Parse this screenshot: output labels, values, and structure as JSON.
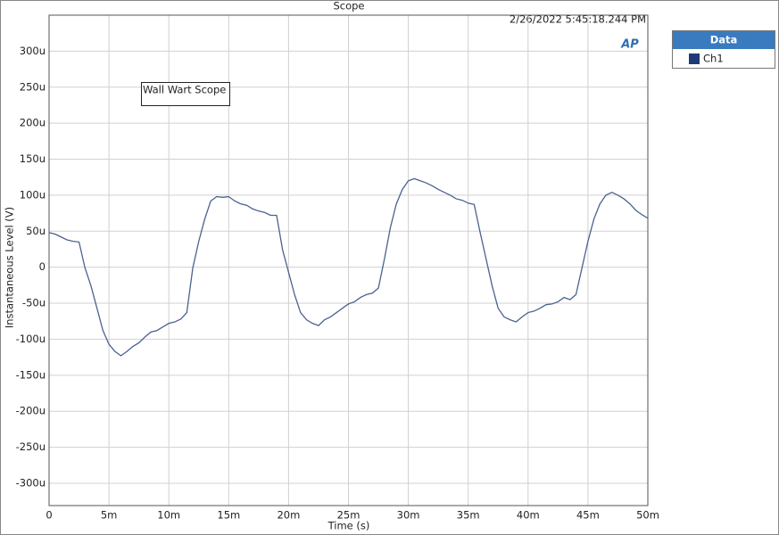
{
  "chart_data": {
    "type": "line",
    "title": "Scope",
    "timestamp": "2/26/2022 5:45:18.244 PM",
    "annotation": "Wall Wart Scope",
    "legend_title": "Data",
    "x_label": "Time (s)",
    "y_label": "Instantaneous Level (V)",
    "grid": true,
    "legend_position": "right",
    "xlim": [
      0,
      0.05
    ],
    "ylim": [
      -0.000331,
      0.00035
    ],
    "xticks": [
      0,
      {
        "value": 0.005,
        "label": "5m"
      },
      {
        "value": 0.01,
        "label": "10m"
      },
      {
        "value": 0.015,
        "label": "15m"
      },
      {
        "value": 0.02,
        "label": "20m"
      },
      {
        "value": 0.025,
        "label": "25m"
      },
      {
        "value": 0.03,
        "label": "30m"
      },
      {
        "value": 0.035,
        "label": "35m"
      },
      {
        "value": 0.04,
        "label": "40m"
      },
      {
        "value": 0.045,
        "label": "45m"
      },
      {
        "value": 0.05,
        "label": "50m"
      }
    ],
    "yticks": [
      {
        "value": -0.0003,
        "label": "-300u"
      },
      {
        "value": -0.00025,
        "label": "-250u"
      },
      {
        "value": -0.0002,
        "label": "-200u"
      },
      {
        "value": -0.00015,
        "label": "-150u"
      },
      {
        "value": -0.0001,
        "label": "-100u"
      },
      {
        "value": -5e-05,
        "label": "-50u"
      },
      0,
      {
        "value": 5e-05,
        "label": "50u"
      },
      {
        "value": 0.0001,
        "label": "100u"
      },
      {
        "value": 0.00015,
        "label": "150u"
      },
      {
        "value": 0.0002,
        "label": "200u"
      },
      {
        "value": 0.00025,
        "label": "250u"
      },
      {
        "value": 0.0003,
        "label": "300u"
      }
    ],
    "x": [
      0,
      0.0005,
      0.001,
      0.0015,
      0.002,
      0.0025,
      0.003,
      0.0035,
      0.004,
      0.0045,
      0.005,
      0.0055,
      0.006,
      0.0065,
      0.007,
      0.0075,
      0.008,
      0.0085,
      0.009,
      0.0095,
      0.01,
      0.0105,
      0.011,
      0.0115,
      0.012,
      0.0125,
      0.013,
      0.0135,
      0.014,
      0.0145,
      0.015,
      0.0155,
      0.016,
      0.0165,
      0.017,
      0.0175,
      0.018,
      0.0185,
      0.019,
      0.0195,
      0.02,
      0.0205,
      0.021,
      0.0215,
      0.022,
      0.0225,
      0.023,
      0.0235,
      0.024,
      0.0245,
      0.025,
      0.0255,
      0.026,
      0.0265,
      0.027,
      0.0275,
      0.028,
      0.0285,
      0.029,
      0.0295,
      0.03,
      0.0305,
      0.031,
      0.0315,
      0.032,
      0.0325,
      0.033,
      0.0335,
      0.034,
      0.0345,
      0.035,
      0.0355,
      0.036,
      0.0365,
      0.037,
      0.0375,
      0.038,
      0.0385,
      0.039,
      0.0395,
      0.04,
      0.0405,
      0.041,
      0.0415,
      0.042,
      0.0425,
      0.043,
      0.0435,
      0.044,
      0.0445,
      0.045,
      0.0455,
      0.046,
      0.0465,
      0.047,
      0.0475,
      0.048,
      0.0485,
      0.049,
      0.0495,
      0.05
    ],
    "series": [
      {
        "name": "Ch1",
        "color": "#4a6290",
        "legend_color": "#1f3a78",
        "values": [
          4.8e-05,
          4.6e-05,
          4.2e-05,
          3.8e-05,
          3.6e-05,
          3.5e-05,
          -1e-06,
          -2.6e-05,
          -5.7e-05,
          -8.8e-05,
          -0.000107,
          -0.000117,
          -0.000123,
          -0.000117,
          -0.00011,
          -0.000105,
          -9.7e-05,
          -9e-05,
          -8.8e-05,
          -8.3e-05,
          -7.8e-05,
          -7.6e-05,
          -7.2e-05,
          -6.3e-05,
          -1e-06,
          3.6e-05,
          6.7e-05,
          9.2e-05,
          9.8e-05,
          9.7e-05,
          9.8e-05,
          9.2e-05,
          8.8e-05,
          8.6e-05,
          8.1e-05,
          7.8e-05,
          7.6e-05,
          7.2e-05,
          7.2e-05,
          2.4e-05,
          -7e-06,
          -3.8e-05,
          -6.3e-05,
          -7.3e-05,
          -7.8e-05,
          -8.1e-05,
          -7.3e-05,
          -6.9e-05,
          -6.3e-05,
          -5.7e-05,
          -5.1e-05,
          -4.8e-05,
          -4.2e-05,
          -3.8e-05,
          -3.6e-05,
          -2.9e-05,
          1.1e-05,
          5.5e-05,
          8.8e-05,
          0.000108,
          0.00012,
          0.000123,
          0.00012,
          0.000117,
          0.000113,
          0.000108,
          0.000104,
          0.0001,
          9.5e-05,
          9.3e-05,
          8.9e-05,
          8.7e-05,
          4.8e-05,
          1.1e-05,
          -2.6e-05,
          -5.7e-05,
          -6.9e-05,
          -7.3e-05,
          -7.6e-05,
          -6.9e-05,
          -6.3e-05,
          -6.1e-05,
          -5.7e-05,
          -5.2e-05,
          -5.1e-05,
          -4.8e-05,
          -4.2e-05,
          -4.5e-05,
          -3.8e-05,
          -1e-06,
          3.6e-05,
          6.7e-05,
          8.8e-05,
          0.0001,
          0.000104,
          0.0001,
          9.5e-05,
          8.8e-05,
          7.9e-05,
          7.3e-05,
          6.8e-05
        ]
      }
    ]
  }
}
